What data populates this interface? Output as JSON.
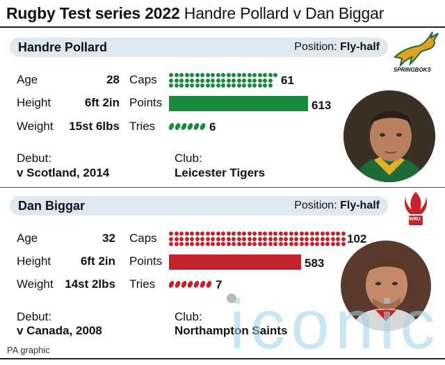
{
  "title": {
    "bold": "Rugby Test series 2022",
    "rest": "Handre Pollard v Dan Biggar"
  },
  "labels": {
    "age": "Age",
    "height": "Height",
    "weight": "Weight",
    "caps": "Caps",
    "points": "Points",
    "tries": "Tries",
    "debut": "Debut:",
    "club": "Club:",
    "position": "Position:"
  },
  "players": [
    {
      "name": "Handre Pollard",
      "position": "Fly-half",
      "age": "28",
      "height": "6ft 2in",
      "weight": "15st 6lbs",
      "caps": 61,
      "points": 613,
      "tries": 6,
      "debut": "v Scotland, 2014",
      "club": "Leicester Tigers",
      "color": "#1a8a3c",
      "logo_text": "SPRINGBOKS"
    },
    {
      "name": "Dan Biggar",
      "position": "Fly-half",
      "age": "32",
      "height": "6ft 2in",
      "weight": "14st 2lbs",
      "caps": 102,
      "points": 583,
      "tries": 7,
      "debut": "v Canada, 2008",
      "club": "Northampton Saints",
      "color": "#c4232c",
      "logo_text": "WRU"
    }
  ],
  "watermark": "iconic",
  "credit": "PA graphic"
}
